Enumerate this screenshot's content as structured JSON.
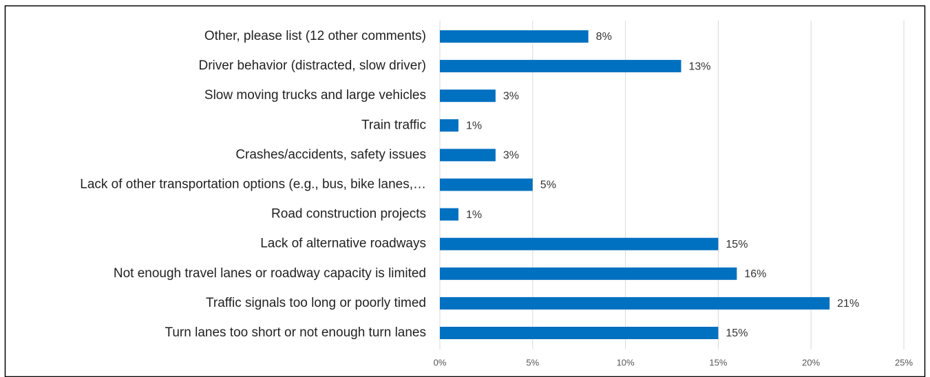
{
  "chart_data": {
    "type": "bar",
    "orientation": "horizontal",
    "categories": [
      "Other, please list (12 other comments)",
      "Driver behavior (distracted, slow driver)",
      "Slow moving trucks and large vehicles",
      "Train traffic",
      "Crashes/accidents, safety issues",
      "Lack of other transportation options (e.g., bus, bike lanes,…",
      "Road construction projects",
      "Lack of alternative roadways",
      "Not enough travel lanes or roadway capacity is limited",
      "Traffic signals too long or poorly timed",
      "Turn lanes too short or not enough turn lanes"
    ],
    "values": [
      8,
      13,
      3,
      1,
      3,
      5,
      1,
      15,
      16,
      21,
      15
    ],
    "value_labels": [
      "8%",
      "13%",
      "3%",
      "1%",
      "3%",
      "5%",
      "1%",
      "15%",
      "16%",
      "21%",
      "15%"
    ],
    "color": "#0070c0",
    "xlim": [
      0,
      25
    ],
    "xticks": [
      {
        "value": 0,
        "label": "0%"
      },
      {
        "value": 5,
        "label": "5%"
      },
      {
        "value": 10,
        "label": "10%"
      },
      {
        "value": 15,
        "label": "15%"
      },
      {
        "value": 20,
        "label": "20%"
      },
      {
        "value": 25,
        "label": "25%"
      }
    ],
    "grid": true
  }
}
